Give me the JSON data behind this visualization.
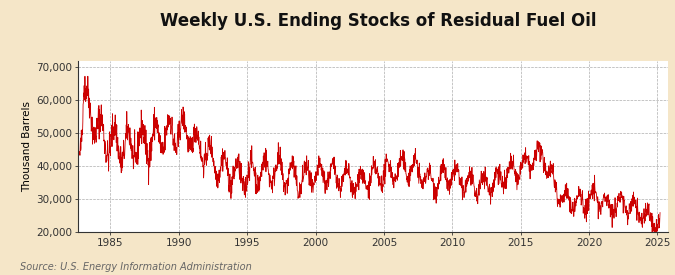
{
  "title": "Weekly U.S. Ending Stocks of Residual Fuel Oil",
  "ylabel": "Thousand Barrels",
  "source_text": "Source: U.S. Energy Information Administration",
  "background_color": "#f5e6c8",
  "plot_bg_color": "#ffffff",
  "line_color": "#cc0000",
  "grid_color": "#999999",
  "ylim": [
    20000,
    72000
  ],
  "yticks": [
    20000,
    30000,
    40000,
    50000,
    60000,
    70000
  ],
  "ytick_labels": [
    "20,000",
    "30,000",
    "40,000",
    "50,000",
    "60,000",
    "70,000"
  ],
  "x_start_year": 1982.6,
  "x_end_year": 2025.8,
  "xticks": [
    1985,
    1990,
    1995,
    2000,
    2005,
    2010,
    2015,
    2020,
    2025
  ],
  "title_fontsize": 12,
  "label_fontsize": 7.5,
  "tick_fontsize": 7.5,
  "source_fontsize": 7
}
